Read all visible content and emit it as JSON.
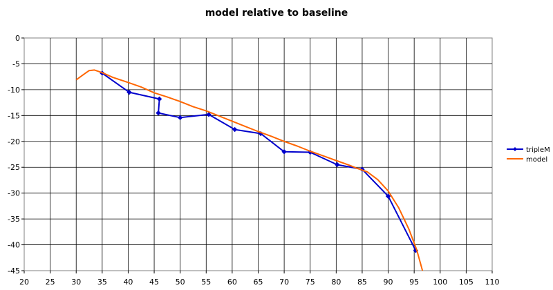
{
  "chart_data": {
    "type": "line",
    "title": "model relative to baseline",
    "xlabel": "",
    "ylabel": "",
    "xlim": [
      20,
      110
    ],
    "ylim": [
      -45,
      0
    ],
    "x_ticks": [
      20,
      25,
      30,
      35,
      40,
      45,
      50,
      55,
      60,
      65,
      70,
      75,
      80,
      85,
      90,
      95,
      100,
      105,
      110
    ],
    "y_ticks": [
      0,
      -5,
      -10,
      -15,
      -20,
      -25,
      -30,
      -35,
      -40,
      -45
    ],
    "grid": true,
    "legend_position": "right",
    "series": [
      {
        "name": "tripleM",
        "color": "#0000cc",
        "marker": "diamond",
        "points": [
          [
            35,
            -6.8
          ],
          [
            40.2,
            -10.5
          ],
          [
            46,
            -11.8
          ],
          [
            45.8,
            -14.5
          ],
          [
            50,
            -15.4
          ],
          [
            55.5,
            -14.8
          ],
          [
            60.5,
            -17.7
          ],
          [
            65.5,
            -18.5
          ],
          [
            70,
            -22
          ],
          [
            75,
            -22.1
          ],
          [
            80.2,
            -24.5
          ],
          [
            85,
            -25.4
          ],
          [
            90,
            -30.6
          ],
          [
            95.3,
            -41.1
          ]
        ]
      },
      {
        "name": "model",
        "color": "#ff6600",
        "marker": "none",
        "points": [
          [
            30,
            -8.1
          ],
          [
            31.5,
            -7
          ],
          [
            32.5,
            -6.3
          ],
          [
            33.5,
            -6.2
          ],
          [
            35,
            -6.7
          ],
          [
            37,
            -7.6
          ],
          [
            40,
            -8.6
          ],
          [
            42.5,
            -9.5
          ],
          [
            45,
            -10.6
          ],
          [
            47.5,
            -11.4
          ],
          [
            50,
            -12.3
          ],
          [
            52.5,
            -13.3
          ],
          [
            55,
            -14.1
          ],
          [
            57.5,
            -15.1
          ],
          [
            60,
            -16.1
          ],
          [
            62.5,
            -17.1
          ],
          [
            65,
            -18.1
          ],
          [
            67.5,
            -19
          ],
          [
            70,
            -20
          ],
          [
            72.5,
            -20.9
          ],
          [
            75,
            -21.9
          ],
          [
            77.5,
            -22.8
          ],
          [
            80,
            -23.7
          ],
          [
            82.5,
            -24.6
          ],
          [
            84,
            -25.2
          ],
          [
            86,
            -25.9
          ],
          [
            88,
            -27.4
          ],
          [
            90,
            -29.6
          ],
          [
            92,
            -32.8
          ],
          [
            94,
            -37
          ],
          [
            95.5,
            -41
          ],
          [
            96.6,
            -45
          ]
        ]
      }
    ]
  }
}
